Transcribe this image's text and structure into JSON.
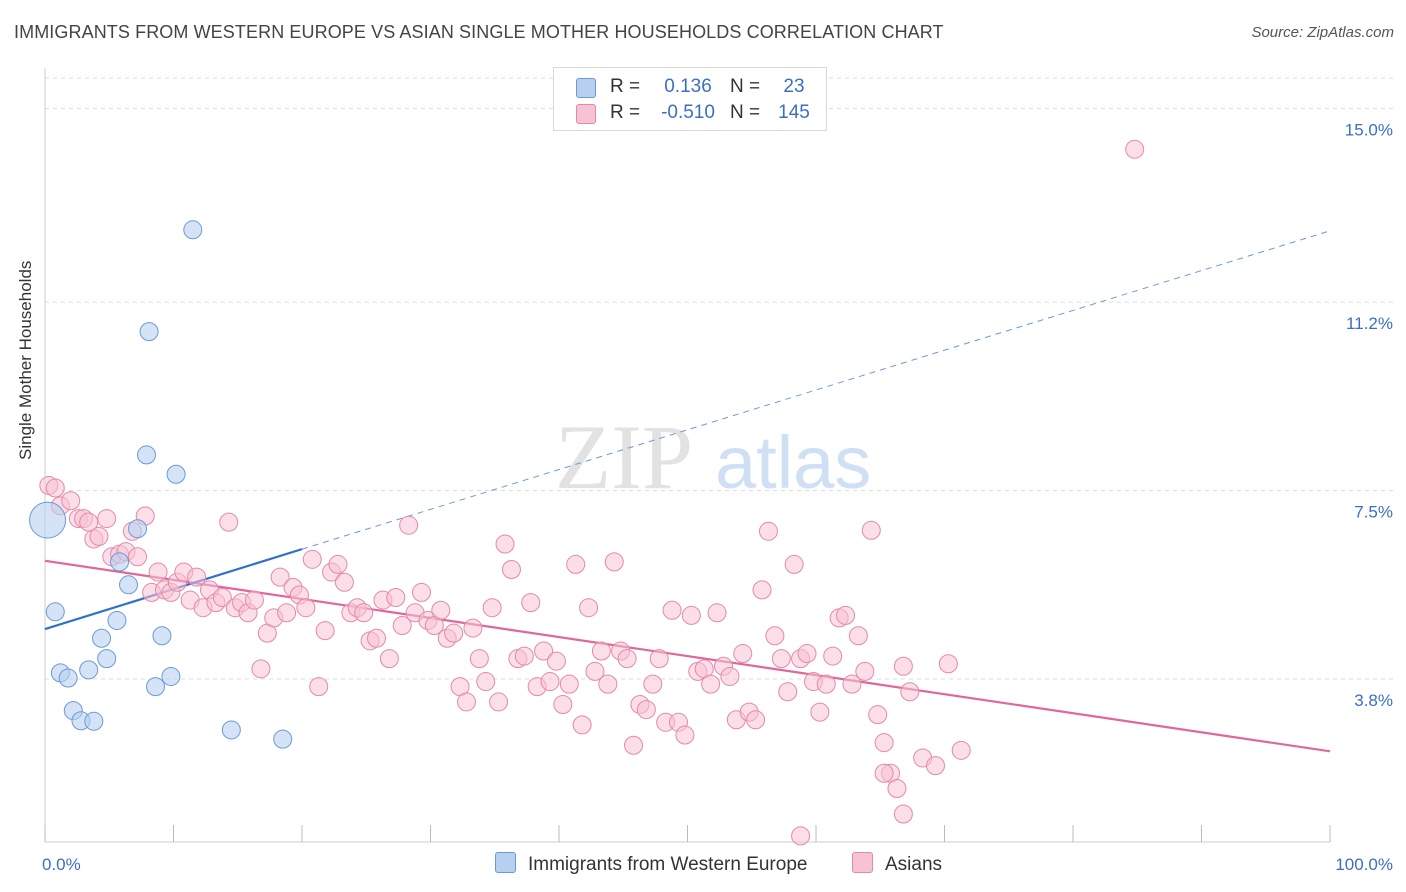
{
  "title": "IMMIGRANTS FROM WESTERN EUROPE VS ASIAN SINGLE MOTHER HOUSEHOLDS CORRELATION CHART",
  "source": "Source: ZipAtlas.com",
  "watermark": {
    "zip": "ZIP",
    "atlas": "atlas"
  },
  "colors": {
    "blue_fill": "#b8d0f0",
    "blue_stroke": "#6b9ad8",
    "blue_line": "#2f6fce",
    "pink_fill": "#f7c3d4",
    "pink_stroke": "#e48aa8",
    "pink_line": "#e0679a",
    "grid": "#dddddd",
    "tick_label": "#3b6fc4"
  },
  "legend_top": [
    {
      "r_label": "R =",
      "r_value": "0.136",
      "n_label": "N =",
      "n_value": "23"
    },
    {
      "r_label": "R =",
      "r_value": "-0.510",
      "n_label": "N =",
      "n_value": "145"
    }
  ],
  "chart_data": {
    "type": "scatter",
    "title": "IMMIGRANTS FROM WESTERN EUROPE VS ASIAN SINGLE MOTHER HOUSEHOLDS CORRELATION CHART",
    "xlabel": "",
    "ylabel": "Single Mother Households",
    "xlim": [
      0,
      100
    ],
    "ylim": [
      0.6,
      15.6
    ],
    "x_ticks": [
      0,
      10,
      20,
      30,
      40,
      50,
      60,
      70,
      80,
      90,
      100
    ],
    "x_tick_labels": [
      {
        "value": 0,
        "label": "0.0%"
      },
      {
        "value": 100,
        "label": "100.0%"
      }
    ],
    "y_ticks": [
      {
        "value": 3.8,
        "label": "3.8%"
      },
      {
        "value": 7.5,
        "label": "7.5%"
      },
      {
        "value": 11.2,
        "label": "11.2%"
      },
      {
        "value": 15.0,
        "label": "15.0%"
      }
    ],
    "grid": true,
    "legend_position": "bottom",
    "series": [
      {
        "name": "Immigrants from Western Europe",
        "color": "#b8d0f0",
        "r": 0.136,
        "n": 23,
        "trend": {
          "x0": 0,
          "y0": 4.78,
          "x1": 20,
          "y1": 6.35,
          "extended_to": {
            "x": 100,
            "y": 12.6
          }
        },
        "points": [
          {
            "x": 0.2,
            "y": 6.92,
            "big": true
          },
          {
            "x": 0.8,
            "y": 5.12
          },
          {
            "x": 1.2,
            "y": 3.92
          },
          {
            "x": 1.8,
            "y": 3.82
          },
          {
            "x": 2.2,
            "y": 3.18
          },
          {
            "x": 2.8,
            "y": 2.98
          },
          {
            "x": 3.4,
            "y": 3.98
          },
          {
            "x": 3.8,
            "y": 2.97
          },
          {
            "x": 4.4,
            "y": 4.6
          },
          {
            "x": 4.8,
            "y": 4.2
          },
          {
            "x": 5.6,
            "y": 4.95
          },
          {
            "x": 5.8,
            "y": 6.1
          },
          {
            "x": 6.5,
            "y": 5.65
          },
          {
            "x": 7.2,
            "y": 6.75
          },
          {
            "x": 7.9,
            "y": 8.2
          },
          {
            "x": 8.1,
            "y": 10.62
          },
          {
            "x": 8.6,
            "y": 3.65
          },
          {
            "x": 9.1,
            "y": 4.65
          },
          {
            "x": 9.8,
            "y": 3.85
          },
          {
            "x": 10.2,
            "y": 7.82
          },
          {
            "x": 11.5,
            "y": 12.62
          },
          {
            "x": 14.5,
            "y": 2.8
          },
          {
            "x": 18.5,
            "y": 2.62
          }
        ]
      },
      {
        "name": "Asians",
        "color": "#f7c3d4",
        "r": -0.51,
        "n": 145,
        "trend": {
          "x0": 0,
          "y0": 6.12,
          "x1": 100,
          "y1": 2.38
        },
        "points": [
          {
            "x": 0.3,
            "y": 7.6
          },
          {
            "x": 0.8,
            "y": 7.55
          },
          {
            "x": 1.2,
            "y": 7.2
          },
          {
            "x": 2.0,
            "y": 7.3
          },
          {
            "x": 2.6,
            "y": 6.95
          },
          {
            "x": 3.0,
            "y": 6.95
          },
          {
            "x": 3.4,
            "y": 6.88
          },
          {
            "x": 3.8,
            "y": 6.55
          },
          {
            "x": 4.2,
            "y": 6.6
          },
          {
            "x": 4.8,
            "y": 6.95
          },
          {
            "x": 5.2,
            "y": 6.2
          },
          {
            "x": 5.8,
            "y": 6.25
          },
          {
            "x": 6.3,
            "y": 6.3
          },
          {
            "x": 6.8,
            "y": 6.7
          },
          {
            "x": 7.2,
            "y": 6.2
          },
          {
            "x": 7.8,
            "y": 7.0
          },
          {
            "x": 8.3,
            "y": 5.5
          },
          {
            "x": 8.8,
            "y": 5.9
          },
          {
            "x": 9.3,
            "y": 5.55
          },
          {
            "x": 9.8,
            "y": 5.5
          },
          {
            "x": 10.3,
            "y": 5.7
          },
          {
            "x": 10.8,
            "y": 5.9
          },
          {
            "x": 11.3,
            "y": 5.35
          },
          {
            "x": 11.8,
            "y": 5.8
          },
          {
            "x": 12.3,
            "y": 5.2
          },
          {
            "x": 12.8,
            "y": 5.55
          },
          {
            "x": 13.3,
            "y": 5.3
          },
          {
            "x": 13.8,
            "y": 5.4
          },
          {
            "x": 14.3,
            "y": 6.88
          },
          {
            "x": 14.8,
            "y": 5.2
          },
          {
            "x": 15.3,
            "y": 5.3
          },
          {
            "x": 15.8,
            "y": 5.1
          },
          {
            "x": 16.3,
            "y": 5.35
          },
          {
            "x": 16.8,
            "y": 4.0
          },
          {
            "x": 17.3,
            "y": 4.7
          },
          {
            "x": 17.8,
            "y": 5.0
          },
          {
            "x": 18.3,
            "y": 5.8
          },
          {
            "x": 18.8,
            "y": 5.1
          },
          {
            "x": 19.3,
            "y": 5.6
          },
          {
            "x": 19.8,
            "y": 5.45
          },
          {
            "x": 20.3,
            "y": 5.2
          },
          {
            "x": 20.8,
            "y": 6.15
          },
          {
            "x": 21.3,
            "y": 3.65
          },
          {
            "x": 21.8,
            "y": 4.75
          },
          {
            "x": 22.3,
            "y": 5.9
          },
          {
            "x": 22.8,
            "y": 6.05
          },
          {
            "x": 23.3,
            "y": 5.7
          },
          {
            "x": 23.8,
            "y": 5.1
          },
          {
            "x": 24.3,
            "y": 5.2
          },
          {
            "x": 24.8,
            "y": 5.1
          },
          {
            "x": 25.3,
            "y": 4.55
          },
          {
            "x": 25.8,
            "y": 4.6
          },
          {
            "x": 26.3,
            "y": 5.35
          },
          {
            "x": 26.8,
            "y": 4.2
          },
          {
            "x": 27.3,
            "y": 5.4
          },
          {
            "x": 27.8,
            "y": 4.85
          },
          {
            "x": 28.3,
            "y": 6.82
          },
          {
            "x": 28.8,
            "y": 5.1
          },
          {
            "x": 29.3,
            "y": 5.5
          },
          {
            "x": 29.8,
            "y": 4.95
          },
          {
            "x": 30.3,
            "y": 4.85
          },
          {
            "x": 30.8,
            "y": 5.15
          },
          {
            "x": 31.3,
            "y": 4.6
          },
          {
            "x": 31.8,
            "y": 4.7
          },
          {
            "x": 32.3,
            "y": 3.65
          },
          {
            "x": 32.8,
            "y": 3.35
          },
          {
            "x": 33.3,
            "y": 4.8
          },
          {
            "x": 33.8,
            "y": 4.2
          },
          {
            "x": 34.3,
            "y": 3.75
          },
          {
            "x": 34.8,
            "y": 5.2
          },
          {
            "x": 35.3,
            "y": 3.35
          },
          {
            "x": 35.8,
            "y": 6.45
          },
          {
            "x": 36.3,
            "y": 5.95
          },
          {
            "x": 36.8,
            "y": 4.2
          },
          {
            "x": 37.3,
            "y": 4.25
          },
          {
            "x": 37.8,
            "y": 5.3
          },
          {
            "x": 38.3,
            "y": 3.65
          },
          {
            "x": 38.8,
            "y": 4.35
          },
          {
            "x": 39.3,
            "y": 3.75
          },
          {
            "x": 39.8,
            "y": 4.15
          },
          {
            "x": 40.3,
            "y": 3.3
          },
          {
            "x": 40.8,
            "y": 3.7
          },
          {
            "x": 41.3,
            "y": 6.05
          },
          {
            "x": 41.8,
            "y": 2.9
          },
          {
            "x": 42.3,
            "y": 5.2
          },
          {
            "x": 42.8,
            "y": 3.95
          },
          {
            "x": 43.3,
            "y": 4.35
          },
          {
            "x": 43.8,
            "y": 3.7
          },
          {
            "x": 44.3,
            "y": 6.1
          },
          {
            "x": 44.8,
            "y": 4.35
          },
          {
            "x": 45.3,
            "y": 4.2
          },
          {
            "x": 45.8,
            "y": 2.5
          },
          {
            "x": 46.3,
            "y": 3.3
          },
          {
            "x": 46.8,
            "y": 3.2
          },
          {
            "x": 47.3,
            "y": 3.7
          },
          {
            "x": 47.8,
            "y": 4.2
          },
          {
            "x": 48.3,
            "y": 2.95
          },
          {
            "x": 48.8,
            "y": 5.15
          },
          {
            "x": 49.3,
            "y": 2.95
          },
          {
            "x": 49.8,
            "y": 2.7
          },
          {
            "x": 50.3,
            "y": 5.05
          },
          {
            "x": 50.8,
            "y": 3.95
          },
          {
            "x": 51.3,
            "y": 4.0
          },
          {
            "x": 51.8,
            "y": 3.7
          },
          {
            "x": 52.3,
            "y": 5.1
          },
          {
            "x": 52.8,
            "y": 4.05
          },
          {
            "x": 53.3,
            "y": 3.85
          },
          {
            "x": 53.8,
            "y": 3.0
          },
          {
            "x": 54.3,
            "y": 4.3
          },
          {
            "x": 54.8,
            "y": 3.15
          },
          {
            "x": 55.3,
            "y": 3.0
          },
          {
            "x": 55.8,
            "y": 5.55
          },
          {
            "x": 56.3,
            "y": 6.7
          },
          {
            "x": 56.8,
            "y": 4.65
          },
          {
            "x": 57.3,
            "y": 4.2
          },
          {
            "x": 57.8,
            "y": 3.55
          },
          {
            "x": 58.3,
            "y": 6.05
          },
          {
            "x": 58.8,
            "y": 4.2
          },
          {
            "x": 59.3,
            "y": 4.3
          },
          {
            "x": 59.8,
            "y": 3.75
          },
          {
            "x": 60.3,
            "y": 3.15
          },
          {
            "x": 60.8,
            "y": 3.7
          },
          {
            "x": 61.3,
            "y": 4.25
          },
          {
            "x": 61.8,
            "y": 5.0
          },
          {
            "x": 62.3,
            "y": 5.05
          },
          {
            "x": 62.8,
            "y": 3.7
          },
          {
            "x": 63.3,
            "y": 4.65
          },
          {
            "x": 63.8,
            "y": 3.95
          },
          {
            "x": 64.3,
            "y": 6.72
          },
          {
            "x": 64.8,
            "y": 3.1
          },
          {
            "x": 65.3,
            "y": 2.55
          },
          {
            "x": 65.8,
            "y": 1.95
          },
          {
            "x": 66.3,
            "y": 1.65
          },
          {
            "x": 66.8,
            "y": 4.05
          },
          {
            "x": 67.3,
            "y": 3.55
          },
          {
            "x": 68.3,
            "y": 2.25
          },
          {
            "x": 69.3,
            "y": 2.1
          },
          {
            "x": 70.3,
            "y": 4.1
          },
          {
            "x": 71.3,
            "y": 2.4
          },
          {
            "x": 84.8,
            "y": 14.2
          },
          {
            "x": 58.8,
            "y": 0.72
          },
          {
            "x": 66.8,
            "y": 1.15
          },
          {
            "x": 65.3,
            "y": 1.95
          }
        ]
      }
    ]
  },
  "legend_bottom": [
    {
      "label": "Immigrants from Western Europe"
    },
    {
      "label": "Asians"
    }
  ]
}
